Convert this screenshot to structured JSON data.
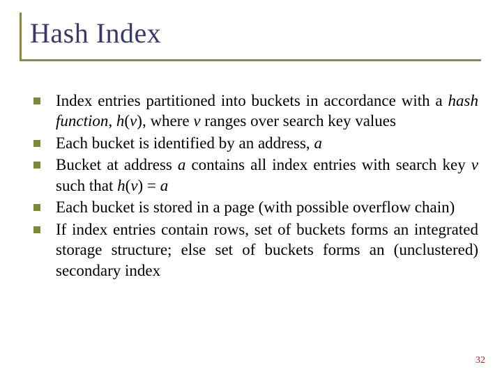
{
  "title": "Hash Index",
  "bullets": [
    {
      "html": "Index entries partitioned into buckets in accordance with a <span class='ital'>hash function</span>, <span class='ital'>h</span>(<span class='ital'>v</span>), where <span class='ital'>v</span> ranges over search key values"
    },
    {
      "html": "Each bucket is identified by an address, <span class='ital'>a</span>"
    },
    {
      "html": "Bucket at address <span class='ital'>a</span> contains all index entries with search key <span class='ital'>v</span> such that <span class='ital'>h</span>(<span class='ital'>v</span>) = <span class='ital'>a</span>"
    },
    {
      "html": "Each bucket is stored in a page (with possible overflow chain)"
    },
    {
      "html": "If index entries contain rows, set of buckets forms an integrated storage structure; else set of buckets forms an (unclustered) secondary index"
    }
  ],
  "page_number": "32",
  "colors": {
    "title_border": "#8a8a3a",
    "title_text": "#3a3a6a",
    "bullet_square": "#7a8a3a",
    "body_text": "#000000",
    "page_num": "#b02020",
    "background": "#ffffff"
  },
  "typography": {
    "title_fontsize": 40,
    "body_fontsize": 23,
    "pagenum_fontsize": 14,
    "font_family": "Times New Roman"
  }
}
